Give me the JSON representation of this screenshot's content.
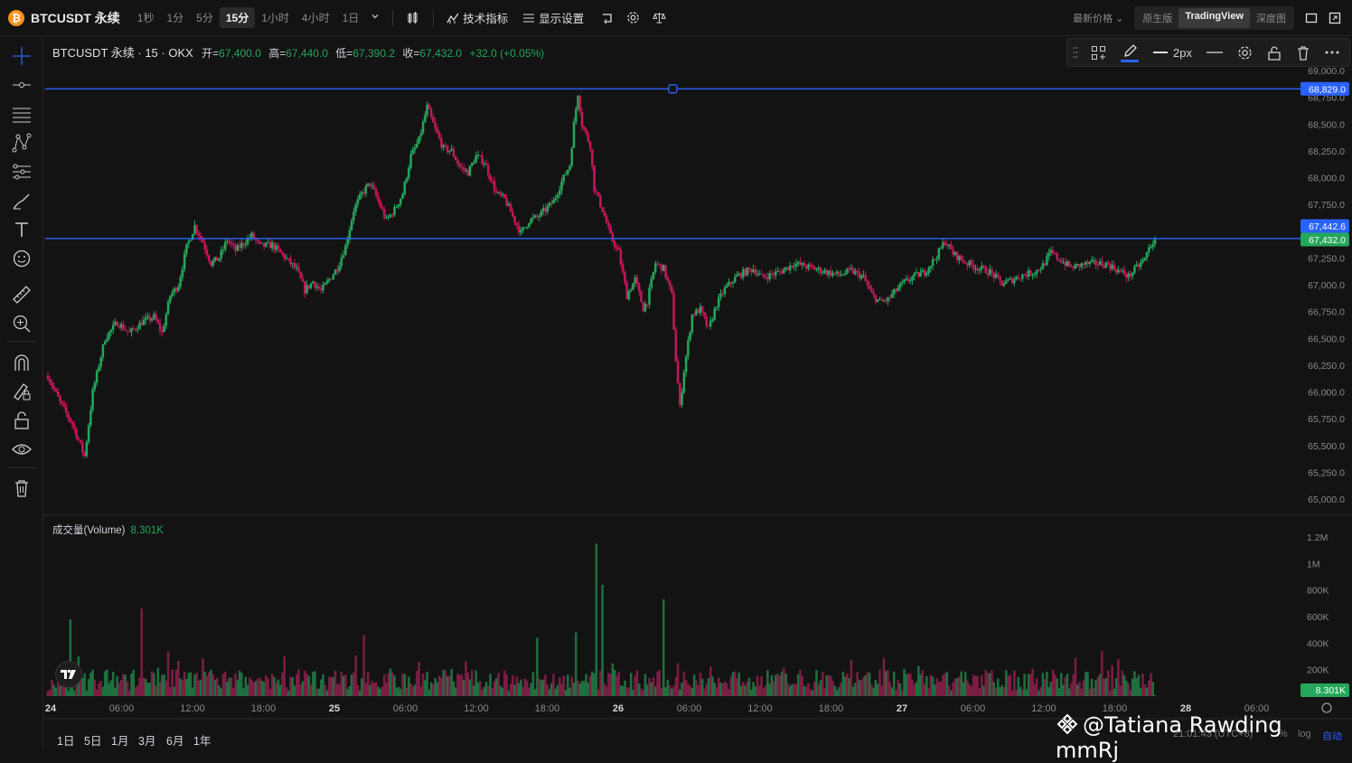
{
  "topbar": {
    "coin_glyph": "₿",
    "symbol": "BTCUSDT 永续",
    "intervals": [
      "1秒",
      "1分",
      "5分",
      "15分",
      "1小时",
      "4小时",
      "1日"
    ],
    "active_interval": "15分",
    "indicators_label": "技术指标",
    "display_label": "显示设置",
    "price_mode": "最新价格",
    "views": [
      "原生版",
      "TradingView",
      "深度图"
    ],
    "active_view": "TradingView"
  },
  "legend": {
    "title": "BTCUSDT 永续 · 15 · OKX",
    "open_k": "开=",
    "open_v": "67,400.0",
    "high_k": "高=",
    "high_v": "67,440.0",
    "low_k": "低=",
    "low_v": "67,390.2",
    "close_k": "收=",
    "close_v": "67,432.0",
    "change": "+32.0 (+0.05%)"
  },
  "volume_legend": {
    "label": "成交量(Volume)",
    "value": "8.301K"
  },
  "draw_toolbar": {
    "width_label": "2px"
  },
  "price_axis": {
    "ticks": [
      "69,000.0",
      "68,750.0",
      "68,500.0",
      "68,250.0",
      "68,000.0",
      "67,750.0",
      "67,500.0",
      "67,250.0",
      "67,000.0",
      "66,750.0",
      "66,500.0",
      "66,250.0",
      "66,000.0",
      "65,750.0",
      "65,500.0",
      "65,250.0",
      "65,000.0"
    ],
    "line1_label": "68,829.0",
    "mark_label": "67,442.6",
    "last_label": "67,432.0"
  },
  "volume_axis": {
    "ticks": [
      "1.2M",
      "1M",
      "800K",
      "600K",
      "400K",
      "200K"
    ],
    "last_label": "8.301K"
  },
  "time_axis": [
    "24",
    "06:00",
    "12:00",
    "18:00",
    "25",
    "06:00",
    "12:00",
    "18:00",
    "26",
    "06:00",
    "12:00",
    "18:00",
    "27",
    "06:00",
    "12:00",
    "18:00",
    "28",
    "06:00"
  ],
  "ranges": [
    "1日",
    "5日",
    "1月",
    "3月",
    "6月",
    "1年"
  ],
  "bottom_right": {
    "time": "21:01:43 (UTC+8)",
    "pct": "%",
    "log": "log",
    "auto": "自动"
  },
  "watermark": "@Tatiana Rawding mmRj",
  "colors": {
    "up": "#26a65b",
    "down": "#c2185b",
    "line": "#2962ff",
    "bg": "#131313"
  },
  "chart_data": {
    "type": "candlestick",
    "title": "BTCUSDT 永续 · 15 · OKX",
    "ylim": [
      65000,
      69000
    ],
    "horizontal_lines": [
      68829.0,
      67432.0
    ],
    "last_price": 67432.0,
    "price_path": [
      [
        0,
        66150
      ],
      [
        6,
        65900
      ],
      [
        12,
        65700
      ],
      [
        18,
        65400
      ],
      [
        22,
        66000
      ],
      [
        28,
        66500
      ],
      [
        34,
        66650
      ],
      [
        40,
        66550
      ],
      [
        46,
        66650
      ],
      [
        52,
        66700
      ],
      [
        56,
        66550
      ],
      [
        60,
        66900
      ],
      [
        64,
        67000
      ],
      [
        68,
        67350
      ],
      [
        72,
        67550
      ],
      [
        76,
        67400
      ],
      [
        80,
        67200
      ],
      [
        84,
        67250
      ],
      [
        88,
        67420
      ],
      [
        92,
        67320
      ],
      [
        100,
        67460
      ],
      [
        104,
        67360
      ],
      [
        110,
        67370
      ],
      [
        116,
        67260
      ],
      [
        122,
        67140
      ],
      [
        126,
        66950
      ],
      [
        130,
        67030
      ],
      [
        134,
        66940
      ],
      [
        138,
        67050
      ],
      [
        142,
        67160
      ],
      [
        146,
        67360
      ],
      [
        150,
        67700
      ],
      [
        154,
        67850
      ],
      [
        158,
        67950
      ],
      [
        162,
        67780
      ],
      [
        166,
        67600
      ],
      [
        170,
        67700
      ],
      [
        174,
        67850
      ],
      [
        178,
        68200
      ],
      [
        182,
        68350
      ],
      [
        186,
        68660
      ],
      [
        190,
        68450
      ],
      [
        194,
        68270
      ],
      [
        198,
        68250
      ],
      [
        202,
        68100
      ],
      [
        206,
        68050
      ],
      [
        210,
        68200
      ],
      [
        214,
        68150
      ],
      [
        220,
        67850
      ],
      [
        224,
        67800
      ],
      [
        228,
        67640
      ],
      [
        232,
        67480
      ],
      [
        236,
        67600
      ],
      [
        240,
        67630
      ],
      [
        244,
        67700
      ],
      [
        248,
        67780
      ],
      [
        252,
        67960
      ],
      [
        256,
        68120
      ],
      [
        258,
        68500
      ],
      [
        260,
        68790
      ],
      [
        262,
        68500
      ],
      [
        266,
        68300
      ],
      [
        268,
        67900
      ],
      [
        272,
        67700
      ],
      [
        276,
        67450
      ],
      [
        280,
        67300
      ],
      [
        284,
        66900
      ],
      [
        288,
        67050
      ],
      [
        292,
        66780
      ],
      [
        294,
        66850
      ],
      [
        298,
        67200
      ],
      [
        302,
        67150
      ],
      [
        306,
        66900
      ],
      [
        308,
        66300
      ],
      [
        310,
        65850
      ],
      [
        312,
        66200
      ],
      [
        316,
        66720
      ],
      [
        320,
        66770
      ],
      [
        324,
        66580
      ],
      [
        328,
        66820
      ],
      [
        332,
        66960
      ],
      [
        338,
        67080
      ],
      [
        342,
        67120
      ],
      [
        346,
        67150
      ],
      [
        350,
        67070
      ],
      [
        356,
        67100
      ],
      [
        360,
        67130
      ],
      [
        366,
        67200
      ],
      [
        370,
        67180
      ],
      [
        376,
        67150
      ],
      [
        382,
        67120
      ],
      [
        388,
        67090
      ],
      [
        394,
        67130
      ],
      [
        400,
        67070
      ],
      [
        404,
        66910
      ],
      [
        408,
        66840
      ],
      [
        412,
        66860
      ],
      [
        416,
        66950
      ],
      [
        420,
        67020
      ],
      [
        424,
        67070
      ],
      [
        430,
        67120
      ],
      [
        436,
        67270
      ],
      [
        440,
        67410
      ],
      [
        444,
        67290
      ],
      [
        450,
        67210
      ],
      [
        456,
        67160
      ],
      [
        462,
        67120
      ],
      [
        468,
        67010
      ],
      [
        472,
        67040
      ],
      [
        478,
        67090
      ],
      [
        484,
        67120
      ],
      [
        488,
        67180
      ],
      [
        492,
        67300
      ],
      [
        496,
        67240
      ],
      [
        502,
        67160
      ],
      [
        508,
        67190
      ],
      [
        514,
        67200
      ],
      [
        520,
        67190
      ],
      [
        526,
        67120
      ],
      [
        530,
        67080
      ],
      [
        534,
        67160
      ],
      [
        538,
        67240
      ],
      [
        540,
        67340
      ],
      [
        543,
        67432
      ]
    ],
    "volume_spikes": [
      [
        11,
        580000
      ],
      [
        46,
        660000
      ],
      [
        155,
        460000
      ],
      [
        240,
        440000
      ],
      [
        259,
        480000
      ],
      [
        269,
        1150000
      ],
      [
        272,
        840000
      ],
      [
        302,
        730000
      ],
      [
        541,
        175000
      ]
    ],
    "volume_last": 8301,
    "time_labels": [
      "24",
      "06:00",
      "12:00",
      "18:00",
      "25",
      "06:00",
      "12:00",
      "18:00",
      "26",
      "06:00",
      "12:00",
      "18:00",
      "27",
      "06:00",
      "12:00",
      "18:00",
      "28",
      "06:00"
    ]
  }
}
